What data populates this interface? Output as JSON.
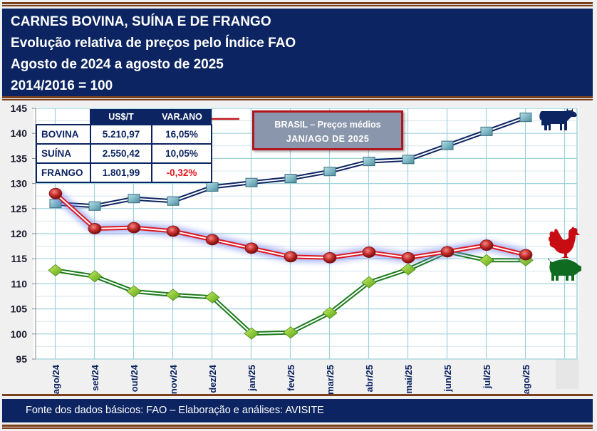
{
  "header": {
    "line1": "CARNES BOVINA, SUÍNA E DE FRANGO",
    "line2": "Evolução relativa de preços pelo Índice FAO",
    "line3": "Agosto de 2024 a agosto de 2025",
    "line4": "2014/2016 = 100"
  },
  "price_table": {
    "headers": [
      "US$/T",
      "VAR.ANO"
    ],
    "rows": [
      {
        "label": "BOVINA",
        "price": "5.210,97",
        "var": "16,05%"
      },
      {
        "label": "SUÍNA",
        "price": "2.550,42",
        "var": "10,05%"
      },
      {
        "label": "FRANGO",
        "price": "1.801,99",
        "var": "-0,32%"
      }
    ]
  },
  "callout": {
    "line1": "BRASIL – Preços médios",
    "line2": "JAN/AGO DE 2025"
  },
  "footer": {
    "source": "Fonte dos dados básicos: FAO – Elaboração e análises: AVISITE"
  },
  "colors": {
    "navy": "#0c2461",
    "bovina": "#0c2461",
    "frango": "#e0161e",
    "suina": "#1a7a1a",
    "negative": "#e0161e",
    "grid": "#9fd2dc",
    "stripe": "#7a3f1c"
  },
  "icons": {
    "bovina": "cow-icon",
    "frango": "rooster-icon",
    "suina": "pig-icon"
  },
  "chart_data": {
    "type": "line",
    "title": "CARNES BOVINA, SUÍNA E DE FRANGO",
    "xlabel": "",
    "ylabel": "",
    "ylim": [
      95,
      145
    ],
    "yticks": [
      95,
      100,
      105,
      110,
      115,
      120,
      125,
      130,
      135,
      140,
      145
    ],
    "grid": true,
    "categories": [
      "ago/24",
      "set/24",
      "out/24",
      "nov/24",
      "dez/24",
      "jan/25",
      "fev/25",
      "mar/25",
      "abr/25",
      "mai/25",
      "jun/25",
      "jul/25",
      "ago/25"
    ],
    "series": [
      {
        "name": "BOVINA",
        "marker": "square",
        "values": [
          126.0,
          125.5,
          127.0,
          126.5,
          129.3,
          130.2,
          131.0,
          132.4,
          134.4,
          134.8,
          137.6,
          140.4,
          143.2
        ]
      },
      {
        "name": "FRANGO",
        "marker": "circle",
        "values": [
          128.0,
          121.0,
          121.2,
          120.5,
          118.8,
          117.1,
          115.4,
          115.2,
          116.3,
          115.2,
          116.4,
          117.7,
          115.8
        ]
      },
      {
        "name": "SUÍNA",
        "marker": "diamond",
        "values": [
          112.7,
          111.5,
          108.5,
          107.8,
          107.3,
          100.1,
          100.3,
          104.2,
          110.3,
          112.9,
          116.4,
          114.7,
          114.7
        ]
      }
    ]
  }
}
